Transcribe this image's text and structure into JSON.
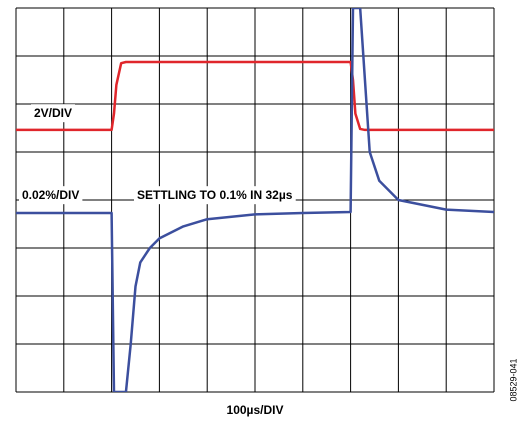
{
  "chart_data": {
    "type": "line",
    "x_label": "100µs/DIV",
    "annotations": [
      "2V/DIV",
      "0.02%/DIV",
      "SETTLING TO 0.1% IN 32µs"
    ],
    "figure_id": "08529-041",
    "xlim": [
      0,
      10
    ],
    "ylim": [
      0,
      8
    ],
    "xticks": [
      0,
      1,
      2,
      3,
      4,
      5,
      6,
      7,
      8,
      9,
      10
    ],
    "yticks": [
      0,
      1,
      2,
      3,
      4,
      5,
      6,
      7,
      8
    ],
    "grid": true,
    "x": [
      0,
      2.0,
      2.05,
      2.1,
      2.2,
      2.3,
      2.4,
      2.5,
      2.6,
      2.8,
      3.0,
      3.5,
      4.0,
      5.0,
      6.0,
      7.0,
      7.05,
      7.1,
      7.2,
      7.3,
      7.4,
      7.6,
      8.0,
      9.0,
      10
    ],
    "series": [
      {
        "color": "#e0262b",
        "values": [
          5.46,
          5.46,
          5.8,
          6.4,
          6.85,
          6.875,
          6.875,
          6.875,
          6.875,
          6.875,
          6.875,
          6.875,
          6.875,
          6.875,
          6.875,
          6.875,
          6.5,
          5.8,
          5.48,
          5.46,
          5.46,
          5.46,
          5.46,
          5.46,
          5.46
        ]
      },
      {
        "color": "#3c4f9e",
        "values": [
          3.73,
          3.73,
          0,
          0,
          0,
          0,
          1.0,
          2.2,
          2.7,
          3.0,
          3.2,
          3.45,
          3.6,
          3.7,
          3.73,
          3.75,
          8,
          8,
          8,
          6.5,
          5.0,
          4.4,
          4.0,
          3.8,
          3.75
        ]
      }
    ]
  }
}
